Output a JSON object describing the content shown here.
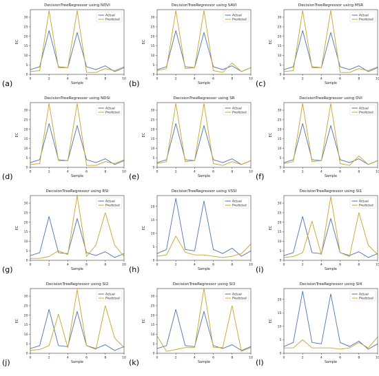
{
  "figure": {
    "colors": {
      "actual": "#4c72b0",
      "predicted": "#c9a227"
    }
  },
  "chart_data": [
    {
      "panel": "(a)",
      "type": "line",
      "title": "DecisionTreeRegressor using NDVI",
      "xlabel": "Sample",
      "ylabel": "EC",
      "xlim": [
        0,
        10
      ],
      "ylim": [
        0,
        34
      ],
      "xticks": [
        "0",
        "2",
        "4",
        "6",
        "8",
        "10"
      ],
      "yticks": [
        "0",
        "5",
        "10",
        "15",
        "20",
        "25",
        "30"
      ],
      "legend": "top-right",
      "x": [
        0,
        1,
        2,
        3,
        4,
        5,
        6,
        7,
        8,
        9,
        10
      ],
      "series": [
        {
          "name": "Actual",
          "values": [
            2.5,
            4,
            23,
            4,
            3.5,
            22,
            4,
            2.5,
            4.5,
            1.5,
            3.5
          ]
        },
        {
          "name": "Predicted",
          "values": [
            1.5,
            2,
            33.5,
            3.5,
            3.5,
            33.5,
            1,
            1,
            3,
            2,
            4
          ]
        }
      ]
    },
    {
      "panel": "(b)",
      "type": "line",
      "title": "DecisionTreeRegressor using SAVI",
      "xlabel": "Sample",
      "ylabel": "EC",
      "xlim": [
        0,
        10
      ],
      "ylim": [
        0,
        34
      ],
      "xticks": [
        "0",
        "2",
        "4",
        "6",
        "8",
        "10"
      ],
      "yticks": [
        "0",
        "5",
        "10",
        "15",
        "20",
        "25",
        "30"
      ],
      "legend": "top-right",
      "x": [
        0,
        1,
        2,
        3,
        4,
        5,
        6,
        7,
        8,
        9,
        10
      ],
      "series": [
        {
          "name": "Actual",
          "values": [
            2.5,
            4,
            23,
            4,
            3.5,
            22,
            4,
            2.5,
            4.5,
            1.5,
            3.5
          ]
        },
        {
          "name": "Predicted",
          "values": [
            2,
            3,
            33.5,
            3,
            3.5,
            33.5,
            2,
            1,
            6,
            1.5,
            3.5
          ]
        }
      ]
    },
    {
      "panel": "(c)",
      "type": "line",
      "title": "DecisionTreeRegressor using MSR",
      "xlabel": "Sample",
      "ylabel": "EC",
      "xlim": [
        0,
        10
      ],
      "ylim": [
        0,
        34
      ],
      "xticks": [
        "0",
        "2",
        "4",
        "6",
        "8",
        "10"
      ],
      "yticks": [
        "0",
        "5",
        "10",
        "15",
        "20",
        "25",
        "30"
      ],
      "legend": "top-right",
      "x": [
        0,
        1,
        2,
        3,
        4,
        5,
        6,
        7,
        8,
        9,
        10
      ],
      "series": [
        {
          "name": "Actual",
          "values": [
            2.5,
            4,
            23,
            4,
            3.5,
            22,
            4,
            2.5,
            4.5,
            1.5,
            3.5
          ]
        },
        {
          "name": "Predicted",
          "values": [
            1.5,
            2,
            33.5,
            3.5,
            3.5,
            33.5,
            1,
            1,
            3,
            2,
            4
          ]
        }
      ]
    },
    {
      "panel": "(d)",
      "type": "line",
      "title": "DecisionTreeRegressor using NDSI",
      "xlabel": "Sample",
      "ylabel": "EC",
      "xlim": [
        0,
        10
      ],
      "ylim": [
        0,
        34
      ],
      "xticks": [
        "0",
        "2",
        "4",
        "6",
        "8",
        "10"
      ],
      "yticks": [
        "0",
        "5",
        "10",
        "15",
        "20",
        "25",
        "30"
      ],
      "legend": "top-right",
      "x": [
        0,
        1,
        2,
        3,
        4,
        5,
        6,
        7,
        8,
        9,
        10
      ],
      "series": [
        {
          "name": "Actual",
          "values": [
            2.5,
            4,
            23,
            4,
            3.5,
            22,
            4,
            2.5,
            4.5,
            1.5,
            3.5
          ]
        },
        {
          "name": "Predicted",
          "values": [
            1.5,
            2,
            33.5,
            3.5,
            3.5,
            33.5,
            1,
            1,
            3,
            2,
            4
          ]
        }
      ]
    },
    {
      "panel": "(e)",
      "type": "line",
      "title": "DecisionTreeRegressor using SR",
      "xlabel": "Sample",
      "ylabel": "EC",
      "xlim": [
        0,
        10
      ],
      "ylim": [
        0,
        34
      ],
      "xticks": [
        "0",
        "2",
        "4",
        "6",
        "8",
        "10"
      ],
      "yticks": [
        "0",
        "5",
        "10",
        "15",
        "20",
        "25",
        "30"
      ],
      "legend": "top-right",
      "x": [
        0,
        1,
        2,
        3,
        4,
        5,
        6,
        7,
        8,
        9,
        10
      ],
      "series": [
        {
          "name": "Actual",
          "values": [
            2.5,
            4,
            23,
            4,
            3.5,
            22,
            4,
            2.5,
            4.5,
            1.5,
            3.5
          ]
        },
        {
          "name": "Predicted",
          "values": [
            2,
            3,
            33.5,
            3,
            3.5,
            33.5,
            2,
            1,
            3,
            1.5,
            3.5
          ]
        }
      ]
    },
    {
      "panel": "(f)",
      "type": "line",
      "title": "DecisionTreeRegressor using DVI",
      "xlabel": "Sample",
      "ylabel": "EC",
      "xlim": [
        0,
        10
      ],
      "ylim": [
        0,
        34
      ],
      "xticks": [
        "0",
        "2",
        "4",
        "6",
        "8",
        "10"
      ],
      "yticks": [
        "0",
        "5",
        "10",
        "15",
        "20",
        "25",
        "30"
      ],
      "legend": "top-right",
      "x": [
        0,
        1,
        2,
        3,
        4,
        5,
        6,
        7,
        8,
        9,
        10
      ],
      "series": [
        {
          "name": "Actual",
          "values": [
            2.5,
            4,
            23,
            4,
            3.5,
            22,
            4,
            2.5,
            4.5,
            1.5,
            3.5
          ]
        },
        {
          "name": "Predicted",
          "values": [
            2,
            3,
            33.5,
            3,
            3.5,
            33.5,
            2,
            1,
            6,
            1.5,
            3.5
          ]
        }
      ]
    },
    {
      "panel": "(g)",
      "type": "line",
      "title": "DecisionTreeRegressor using RSI",
      "xlabel": "Sample",
      "ylabel": "EC",
      "xlim": [
        0,
        10
      ],
      "ylim": [
        0,
        34
      ],
      "xticks": [
        "0",
        "2",
        "4",
        "6",
        "8",
        "10"
      ],
      "yticks": [
        "0",
        "5",
        "10",
        "15",
        "20",
        "25",
        "30"
      ],
      "legend": "top-right",
      "x": [
        0,
        1,
        2,
        3,
        4,
        5,
        6,
        7,
        8,
        9,
        10
      ],
      "series": [
        {
          "name": "Actual",
          "values": [
            2.5,
            4,
            23,
            4,
            3.5,
            22,
            4,
            2.5,
            4.5,
            1.5,
            3.5
          ]
        },
        {
          "name": "Predicted",
          "values": [
            1,
            1,
            2,
            5,
            3,
            34,
            2,
            8,
            25,
            8,
            2
          ]
        }
      ]
    },
    {
      "panel": "(h)",
      "type": "line",
      "title": "DecisionTreeRegressor using VSSI",
      "xlabel": "Sample",
      "ylabel": "EC",
      "xlim": [
        0,
        10
      ],
      "ylim": [
        0,
        24
      ],
      "xticks": [
        "0",
        "2",
        "4",
        "6",
        "8",
        "10"
      ],
      "yticks": [
        "0",
        "5",
        "10",
        "15",
        "20"
      ],
      "legend": "top-right",
      "x": [
        0,
        1,
        2,
        3,
        4,
        5,
        6,
        7,
        8,
        9,
        10
      ],
      "series": [
        {
          "name": "Actual",
          "values": [
            2.5,
            4,
            23,
            4,
            3.5,
            22,
            4,
            2.5,
            4.5,
            1.5,
            3.5
          ]
        },
        {
          "name": "Predicted",
          "values": [
            1.5,
            2,
            9,
            3,
            2,
            2,
            1.5,
            1,
            1.5,
            2.5,
            6
          ]
        }
      ]
    },
    {
      "panel": "(i)",
      "type": "line",
      "title": "DecisionTreeRegressor using SI1",
      "xlabel": "Sample",
      "ylabel": "EC",
      "xlim": [
        0,
        10
      ],
      "ylim": [
        0,
        34
      ],
      "xticks": [
        "0",
        "2",
        "4",
        "6",
        "8",
        "10"
      ],
      "yticks": [
        "0",
        "5",
        "10",
        "15",
        "20",
        "25",
        "30"
      ],
      "legend": "top-right",
      "x": [
        0,
        1,
        2,
        3,
        4,
        5,
        6,
        7,
        8,
        9,
        10
      ],
      "series": [
        {
          "name": "Actual",
          "values": [
            2.5,
            4,
            23,
            4,
            3.5,
            22,
            4,
            2.5,
            4.5,
            1.5,
            3.5
          ]
        },
        {
          "name": "Predicted",
          "values": [
            1.5,
            2,
            4,
            20.5,
            3,
            33.5,
            4,
            2,
            25,
            8,
            3
          ]
        }
      ]
    },
    {
      "panel": "(j)",
      "type": "line",
      "title": "DecisionTreeRegressor using SI2",
      "xlabel": "Sample",
      "ylabel": "EC",
      "xlim": [
        0,
        10
      ],
      "ylim": [
        0,
        34
      ],
      "xticks": [
        "0",
        "2",
        "4",
        "6",
        "8",
        "10"
      ],
      "yticks": [
        "0",
        "5",
        "10",
        "15",
        "20",
        "25",
        "30"
      ],
      "legend": "top-right",
      "x": [
        0,
        1,
        2,
        3,
        4,
        5,
        6,
        7,
        8,
        9,
        10
      ],
      "series": [
        {
          "name": "Actual",
          "values": [
            2.5,
            4,
            23,
            4,
            3.5,
            22,
            4,
            2.5,
            4.5,
            1.5,
            3.5
          ]
        },
        {
          "name": "Predicted",
          "values": [
            1.5,
            2,
            4,
            20.5,
            3,
            33.5,
            4,
            2,
            25,
            8,
            3
          ]
        }
      ]
    },
    {
      "panel": "(k)",
      "type": "line",
      "title": "DecisionTreeRegressor using SI3",
      "xlabel": "Sample",
      "ylabel": "EC",
      "xlim": [
        0,
        10
      ],
      "ylim": [
        0,
        34
      ],
      "xticks": [
        "0",
        "2",
        "4",
        "6",
        "8",
        "10"
      ],
      "yticks": [
        "0",
        "5",
        "10",
        "15",
        "20",
        "25",
        "30"
      ],
      "legend": "top-right",
      "x": [
        0,
        1,
        2,
        3,
        4,
        5,
        6,
        7,
        8,
        9,
        10
      ],
      "series": [
        {
          "name": "Actual",
          "values": [
            2.5,
            4,
            23,
            4,
            3.5,
            22,
            4,
            2.5,
            4.5,
            1.5,
            3.5
          ]
        },
        {
          "name": "Predicted",
          "values": [
            9,
            1,
            2,
            3,
            3,
            34,
            3,
            3,
            25,
            1,
            3
          ]
        }
      ]
    },
    {
      "panel": "(l)",
      "type": "line",
      "title": "DecisionTreeRegressor using SI4",
      "xlabel": "Sample",
      "ylabel": "EC",
      "xlim": [
        0,
        10
      ],
      "ylim": [
        0,
        24
      ],
      "xticks": [
        "0",
        "2",
        "4",
        "6",
        "8",
        "10"
      ],
      "yticks": [
        "0",
        "5",
        "10",
        "15",
        "20"
      ],
      "legend": "top-right",
      "x": [
        0,
        1,
        2,
        3,
        4,
        5,
        6,
        7,
        8,
        9,
        10
      ],
      "series": [
        {
          "name": "Actual",
          "values": [
            2.5,
            4,
            23,
            4,
            3.5,
            22,
            4,
            2.5,
            4.5,
            1.5,
            3.5
          ]
        },
        {
          "name": "Predicted",
          "values": [
            2,
            2,
            5,
            2,
            2,
            2,
            1.5,
            2,
            4,
            2,
            6
          ]
        }
      ]
    }
  ]
}
